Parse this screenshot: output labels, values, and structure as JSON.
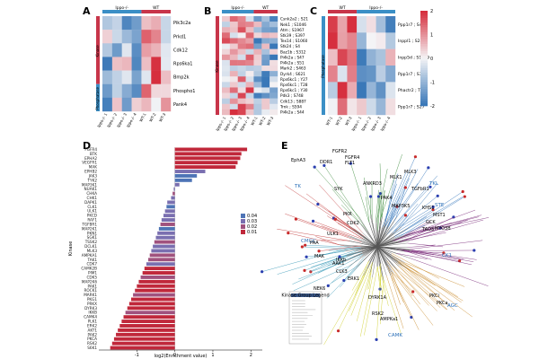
{
  "panels": {
    "A": {
      "letter": "A",
      "groups": [
        "Ippo-/-",
        "WT"
      ],
      "side_groups": [
        "Kinase",
        "Phosphatase"
      ],
      "rows": [
        "Pik3c2a",
        "Prkd1",
        "Cdk12",
        "Rps6ka1",
        "Bmp2k",
        "Phospho1",
        "Pank4"
      ],
      "cols": [
        "Ippo-/- 1",
        "Ippo-/- 2",
        "Ippo-/- 3",
        "Ippo-/- 4",
        "WT-1",
        "WT-2",
        "WT-3"
      ]
    },
    "B": {
      "letter": "B",
      "groups": [
        "Ippo-/-",
        "WT"
      ],
      "side_groups": [
        "Kinase"
      ],
      "rows": [
        "Csnk2a2 ; S21",
        "Nek1 ; S1046",
        "Atm ; S1967",
        "Stk39 ; S397",
        "Tex14 ; S1060",
        "Stk24 ; S4",
        "Baz1b ; S312",
        "Pi4k2a ; S47",
        "Pi4k2a ; S51",
        "Mark2 ; S463",
        "Dyrk4 ; S621",
        "Rps6kc1 ; Y27",
        "Rps6kc1 ; T28",
        "Rps6kc1 ; Y30",
        "Pdk3 ; S748",
        "Cdk13 ; S887",
        "Trnk ; S594",
        "Pi4k2a ; S44"
      ],
      "cols": [
        "Ippo-/- 1",
        "Ippo-/- 2",
        "Ippo-/- 3",
        "Ippo-/- 4",
        "WT-1",
        "WT-2",
        "WT-3"
      ]
    },
    "C": {
      "letter": "C",
      "groups": [
        "WT",
        "Ippo-/-"
      ],
      "side_groups": [
        "Phosphatase"
      ],
      "rows": [
        "Ppp1r7 ; S45",
        "Inppl1 ; S241",
        "Inpp5d ; S1039",
        "Ppp1r7 ; S323",
        "Phactr2 ; T25",
        "Ppp1r7 ; S27"
      ],
      "cols": [
        "WT-1",
        "WT-2",
        "WT-3",
        "Ippo-/- 1",
        "Ippo-/- 2",
        "Ippo-/- 3",
        "Ippo-/- 4"
      ],
      "colorbar_ticks": [
        "2",
        "1",
        "0",
        "-1",
        "-2"
      ]
    },
    "D": {
      "letter": "D",
      "ylabel": "Kinase",
      "xlabel": "log2(Enrichment value)",
      "legend_values": [
        "0.04",
        "0.03",
        "0.02",
        "0.01"
      ]
    },
    "E": {
      "letter": "E",
      "groups": [
        "TK",
        "TKL",
        "STE",
        "CK1",
        "AGC",
        "CAMK",
        "CMGC"
      ],
      "labels": [
        "EphA3",
        "FGFR2",
        "FGFR4",
        "FLT1",
        "DDR1",
        "SYK",
        "MLK3",
        "MLK1",
        "TGFbR1",
        "ANKRD3",
        "MAP3K5",
        "KHS1",
        "MST1",
        "GCK",
        "MYO3B",
        "TAO3",
        "PAK4",
        "CDK2",
        "PKR",
        "ULK1",
        "PAA",
        "MAK",
        "AAK1",
        "NEK6",
        "IKKb",
        "CLK3",
        "ERK1",
        "DYRK1A",
        "PKCi",
        "PKCa",
        "AMPKa1",
        "RSK2"
      ],
      "inset_title": "Kinase Group Legend"
    }
  },
  "chart_data": {
    "type": "bar",
    "title": "",
    "xlabel": "log2(Enrichment value)",
    "ylabel": "Kinase",
    "xlim": [
      -2,
      2.3
    ],
    "xticks": [
      "-1",
      "0",
      "1",
      "2"
    ],
    "categories": [
      "FGFR4",
      "BTK",
      "EPHA2",
      "VEGFR1",
      "MAK",
      "EPHB2",
      "JAK3",
      "TYK2",
      "MAP3K1",
      "NUAK1",
      "CHKA",
      "CHK1",
      "DAPK1",
      "CLK1",
      "ULK1",
      "PKCD",
      "RAF1",
      "TGFBR1",
      "MAP2K1",
      "PKN1",
      "SGK1",
      "TSSK2",
      "DCLK1",
      "MLK3",
      "AMPKA1",
      "TAK1",
      "CDK7",
      "CAMK2B",
      "PIM1",
      "CDK5",
      "MAP2K6",
      "PAK1",
      "ROCK1",
      "MARK1",
      "PKG1",
      "PRKX",
      "DYRK3",
      "IKKB",
      "CAMK4",
      "PLK1",
      "ERK2",
      "AKT1",
      "PAK2",
      "PKCA",
      "RSK2",
      "S6K1"
    ],
    "values": [
      1.9,
      1.75,
      1.72,
      1.65,
      1.6,
      0.8,
      0.58,
      0.45,
      0.12,
      -0.03,
      -0.06,
      -0.1,
      -0.2,
      -0.22,
      -0.26,
      -0.3,
      -0.35,
      -0.38,
      -0.42,
      -0.46,
      -0.5,
      -0.54,
      -0.58,
      -0.62,
      -0.66,
      -0.7,
      -0.75,
      -0.8,
      -0.85,
      -0.9,
      -0.95,
      -1.0,
      -1.05,
      -1.1,
      -1.15,
      -1.2,
      -1.25,
      -1.3,
      -1.35,
      -1.4,
      -1.45,
      -1.5,
      -1.55,
      -1.6,
      -1.65,
      -1.7
    ],
    "pvalue_color_index": [
      3,
      3,
      3,
      3,
      3,
      1,
      0,
      0,
      1,
      1,
      2,
      1,
      1,
      0,
      1,
      1,
      1,
      2,
      0,
      1,
      1,
      2,
      1,
      1,
      2,
      2,
      1,
      3,
      3,
      2,
      3,
      3,
      3,
      2,
      3,
      3,
      3,
      2,
      3,
      3,
      3,
      3,
      3,
      3,
      3,
      3
    ],
    "legend_colors": [
      "#4e74b6",
      "#7a6fb0",
      "#a0527e",
      "#c0283b"
    ],
    "grid": false
  },
  "colors": {
    "red": "#d62f3e",
    "blue": "#3a78b8",
    "mid": "#f4f4f6",
    "ippo_bar": "#3b8fc6",
    "wt_bar": "#c8354a",
    "kinase_bar": "#c8354a",
    "phosphatase_bar": "#3b8fc6"
  }
}
